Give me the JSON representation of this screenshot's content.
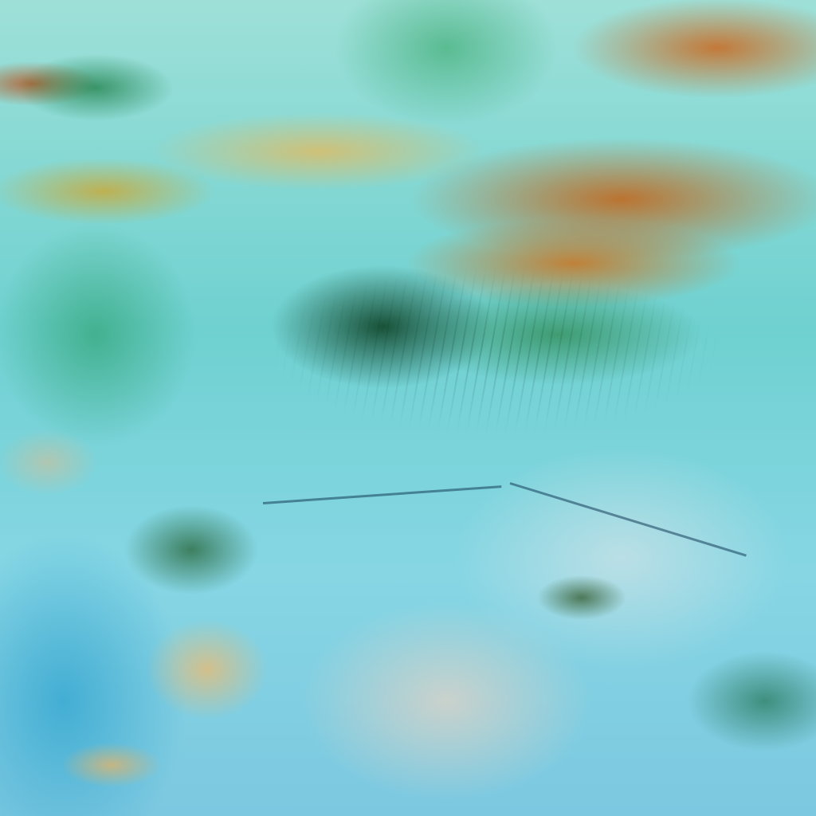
{
  "palette": {
    "cloud_orange": "#be6e28",
    "cloud_tan": "#d7be6e",
    "vegetation_green": "#1e9650",
    "dark_green": "#0a3c1e",
    "sky_cyan": "#7fd4e0",
    "haze": "#d7d2c8"
  }
}
